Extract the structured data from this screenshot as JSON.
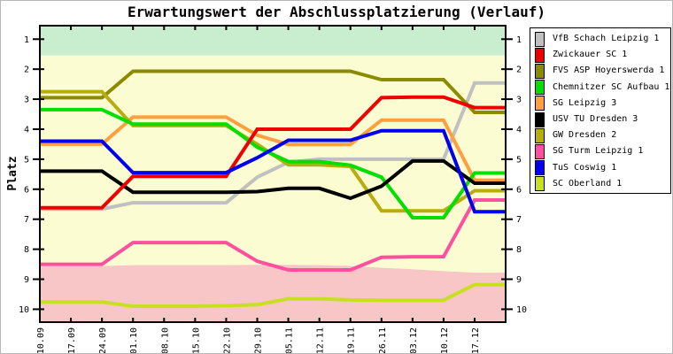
{
  "title": "Erwartungswert der Abschlussplatzierung (Verlauf)",
  "y_axis_title": "Platz",
  "chart_data": {
    "type": "line",
    "title": "Erwartungswert der Abschlussplatzierung (Verlauf)",
    "ylabel": "Platz",
    "y_inverted": true,
    "ylim": [
      0.55,
      10.43
    ],
    "y_tick_labels": [
      "1",
      "2",
      "3",
      "4",
      "5",
      "6",
      "7",
      "8",
      "9",
      "10"
    ],
    "y_ticks": [
      1,
      2,
      3,
      4,
      5,
      6,
      7,
      8,
      9,
      10
    ],
    "x_labels": [
      "10.09",
      "17.09",
      "24.09",
      "01.10",
      "08.10",
      "15.10",
      "22.10",
      "29.10",
      "05.11",
      "12.11",
      "19.11",
      "26.11",
      "03.12",
      "10.12",
      "17.12"
    ],
    "grid": false,
    "legend_position": "top-right",
    "series": [
      {
        "name": "VfB Schach Leipzig 1",
        "color": "#c0c0c0",
        "values": [
          6.66,
          6.66,
          6.66,
          6.45,
          6.45,
          6.45,
          6.45,
          5.6,
          5.1,
          5.0,
          5.0,
          5.0,
          5.0,
          5.0,
          2.46
        ]
      },
      {
        "name": "Zwickauer SC 1",
        "color": "#ee0000",
        "values": [
          6.62,
          6.62,
          6.62,
          5.57,
          5.57,
          5.57,
          5.57,
          4.0,
          4.0,
          4.0,
          4.0,
          2.95,
          2.93,
          2.93,
          3.28
        ]
      },
      {
        "name": "FVS ASP Hoyerswerda 1",
        "color": "#8b8b00",
        "values": [
          2.95,
          2.95,
          2.95,
          2.07,
          2.07,
          2.07,
          2.07,
          2.07,
          2.07,
          2.07,
          2.07,
          2.35,
          2.35,
          2.35,
          3.44
        ]
      },
      {
        "name": "Chemnitzer SC Aufbau 1",
        "color": "#00e000",
        "values": [
          3.35,
          3.35,
          3.35,
          3.83,
          3.83,
          3.83,
          3.83,
          4.6,
          5.08,
          5.08,
          5.2,
          5.6,
          6.95,
          6.95,
          5.46
        ]
      },
      {
        "name": "SG Leipzig 3",
        "color": "#ffa040",
        "values": [
          4.5,
          4.5,
          4.5,
          3.6,
          3.6,
          3.6,
          3.6,
          4.2,
          4.51,
          4.51,
          4.51,
          3.7,
          3.7,
          3.7,
          5.7
        ]
      },
      {
        "name": "USV TU Dresden 3",
        "color": "#000000",
        "values": [
          5.4,
          5.4,
          5.4,
          6.1,
          6.1,
          6.1,
          6.1,
          6.08,
          5.97,
          5.97,
          6.3,
          5.9,
          5.06,
          5.06,
          5.8
        ]
      },
      {
        "name": "GW Dresden 2",
        "color": "#b8ac10",
        "values": [
          2.75,
          2.75,
          2.75,
          3.88,
          3.88,
          3.88,
          3.88,
          4.5,
          5.19,
          5.19,
          5.24,
          6.72,
          6.72,
          6.72,
          6.05
        ]
      },
      {
        "name": "SG Turm Leipzig 1",
        "color": "#ff50a0",
        "values": [
          8.5,
          8.5,
          8.5,
          7.78,
          7.78,
          7.78,
          7.78,
          8.4,
          8.69,
          8.69,
          8.69,
          8.27,
          8.25,
          8.25,
          6.36
        ]
      },
      {
        "name": "TuS Coswig 1",
        "color": "#0000ee",
        "values": [
          4.4,
          4.4,
          4.4,
          5.45,
          5.45,
          5.45,
          5.45,
          4.95,
          4.37,
          4.37,
          4.37,
          4.05,
          4.05,
          4.05,
          6.75
        ]
      },
      {
        "name": "SC Oberland 1",
        "color": "#c8e020",
        "values": [
          9.76,
          9.76,
          9.76,
          9.9,
          9.9,
          9.9,
          9.88,
          9.85,
          9.65,
          9.65,
          9.69,
          9.7,
          9.7,
          9.7,
          9.18
        ]
      }
    ],
    "bands": [
      {
        "name": "top-zone-green",
        "color": "#c8edcf",
        "from": 0.55,
        "to": 1.54
      },
      {
        "name": "mid-zone-yellow",
        "color": "#fcfcd2",
        "from": 1.54,
        "to": "relegation-boundary"
      },
      {
        "name": "bottom-zone-pink",
        "color": "#f8c6c6",
        "boundary_values": [
          8.56,
          8.56,
          8.56,
          8.53,
          8.53,
          8.53,
          8.53,
          8.52,
          8.52,
          8.53,
          8.56,
          8.62,
          8.67,
          8.73,
          8.78
        ],
        "to": 10.43
      }
    ]
  }
}
